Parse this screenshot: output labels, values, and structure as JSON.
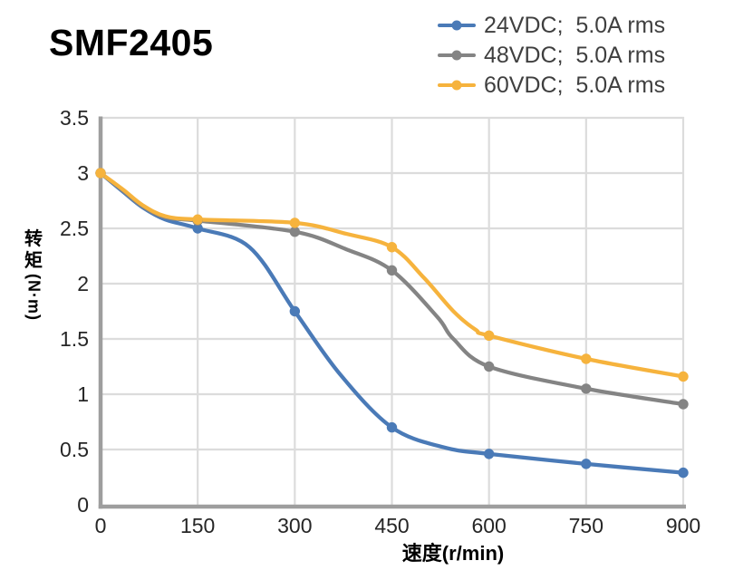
{
  "title": "SMF2405",
  "legend": {
    "items": [
      {
        "label": "24VDC;  5.0A rms",
        "color": "#4a7ab7"
      },
      {
        "label": "48VDC;  5.0A rms",
        "color": "#848484"
      },
      {
        "label": "60VDC;  5.0A rms",
        "color": "#f6b33d"
      }
    ]
  },
  "chart_data": {
    "type": "line",
    "title": "SMF2405",
    "xlabel": "速度(r/min)",
    "ylabel": "转矩(N·m)",
    "ylabel_stack": {
      "char1": "转",
      "char2": "矩",
      "unit": "(N·m)"
    },
    "xlim": [
      0,
      900
    ],
    "ylim": [
      0,
      3.5
    ],
    "x_ticks": [
      0,
      150,
      300,
      450,
      600,
      750,
      900
    ],
    "y_ticks": [
      0,
      0.5,
      1,
      1.5,
      2,
      2.5,
      3,
      3.5
    ],
    "grid": true,
    "legend_position": "top-right",
    "categories": [
      0,
      150,
      300,
      450,
      600,
      750,
      900
    ],
    "series": [
      {
        "name": "24VDC;  5.0A rms",
        "color": "#4a7ab7",
        "values": [
          3.0,
          2.5,
          1.75,
          0.7,
          0.46,
          0.37,
          0.29
        ],
        "curve_points": [
          [
            0,
            3.0
          ],
          [
            35,
            2.83
          ],
          [
            65,
            2.69
          ],
          [
            100,
            2.58
          ],
          [
            150,
            2.5
          ],
          [
            230,
            2.33
          ],
          [
            300,
            1.75
          ],
          [
            370,
            1.18
          ],
          [
            450,
            0.7
          ],
          [
            530,
            0.52
          ],
          [
            600,
            0.46
          ],
          [
            750,
            0.37
          ],
          [
            900,
            0.29
          ]
        ]
      },
      {
        "name": "48VDC;  5.0A rms",
        "color": "#848484",
        "values": [
          3.0,
          2.57,
          2.47,
          2.12,
          1.25,
          1.05,
          0.91
        ],
        "curve_points": [
          [
            0,
            3.0
          ],
          [
            35,
            2.84
          ],
          [
            65,
            2.7
          ],
          [
            100,
            2.6
          ],
          [
            150,
            2.57
          ],
          [
            300,
            2.47
          ],
          [
            380,
            2.31
          ],
          [
            450,
            2.12
          ],
          [
            520,
            1.7
          ],
          [
            545,
            1.5
          ],
          [
            600,
            1.25
          ],
          [
            750,
            1.05
          ],
          [
            900,
            0.91
          ]
        ]
      },
      {
        "name": "60VDC;  5.0A rms",
        "color": "#f6b33d",
        "values": [
          3.0,
          2.58,
          2.55,
          2.33,
          1.53,
          1.32,
          1.16
        ],
        "curve_points": [
          [
            0,
            3.0
          ],
          [
            35,
            2.85
          ],
          [
            65,
            2.71
          ],
          [
            100,
            2.61
          ],
          [
            150,
            2.58
          ],
          [
            300,
            2.55
          ],
          [
            380,
            2.45
          ],
          [
            450,
            2.33
          ],
          [
            500,
            2.05
          ],
          [
            545,
            1.75
          ],
          [
            580,
            1.58
          ],
          [
            600,
            1.53
          ],
          [
            750,
            1.32
          ],
          [
            900,
            1.16
          ]
        ]
      }
    ],
    "colors": {
      "axis": "#9e9e9e",
      "grid": "#dcdcdc",
      "tick_text": "#262626",
      "legend_text": "#3f3f3f"
    }
  }
}
